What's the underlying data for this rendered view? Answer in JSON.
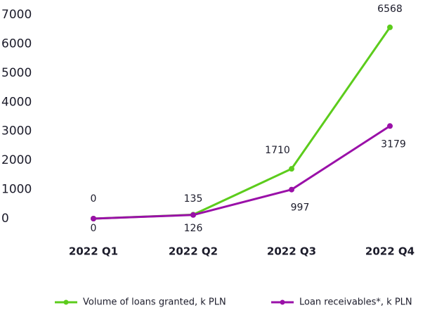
{
  "chart_data": {
    "type": "line",
    "categories": [
      "2022 Q1",
      "2022 Q2",
      "2022 Q3",
      "2022 Q4"
    ],
    "series": [
      {
        "name": "Volume of loans granted, k PLN",
        "color": "#5ccc1c",
        "values": [
          0,
          135,
          1710,
          6568
        ]
      },
      {
        "name": "Loan receivables*, k PLN",
        "color": "#9a10a8",
        "values": [
          0,
          126,
          997,
          3179
        ]
      }
    ],
    "ylim": [
      0,
      7000
    ],
    "yticks": [
      0,
      1000,
      2000,
      3000,
      4000,
      5000,
      6000,
      7000
    ],
    "grid": false
  }
}
